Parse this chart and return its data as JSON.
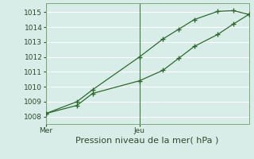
{
  "xlabel": "Pression niveau de la mer( hPa )",
  "background_color": "#d8ede8",
  "plot_bg_color": "#d8ede8",
  "grid_color": "#ffffff",
  "line_color": "#2d6a2d",
  "marker_color": "#2d6a2d",
  "ylim": [
    1007.5,
    1015.6
  ],
  "yticks": [
    1008,
    1009,
    1010,
    1011,
    1012,
    1013,
    1014,
    1015
  ],
  "tick_fontsize": 6.5,
  "xlabel_fontsize": 8,
  "line1_x": [
    0,
    2,
    3,
    6,
    8,
    9,
    10,
    11,
    12,
    13
  ],
  "line1_y": [
    1008.2,
    1009.0,
    1009.7,
    1012.0,
    1013.2,
    1013.8,
    1014.5,
    1015.05,
    1015.1,
    1014.8
  ],
  "line2_x": [
    0,
    2,
    3,
    6,
    8,
    9,
    10,
    11,
    12,
    13
  ],
  "line2_y": [
    1008.2,
    1008.8,
    1009.6,
    1010.4,
    1011.2,
    1012.0,
    1012.8,
    1013.5,
    1014.2,
    1014.8
  ],
  "xtick_positions": [
    0,
    6
  ],
  "xtick_labels": [
    "Mer",
    "Jeu"
  ],
  "vline_x": [
    0,
    6
  ],
  "num_x_grid": 12,
  "xlim": [
    0,
    13
  ]
}
